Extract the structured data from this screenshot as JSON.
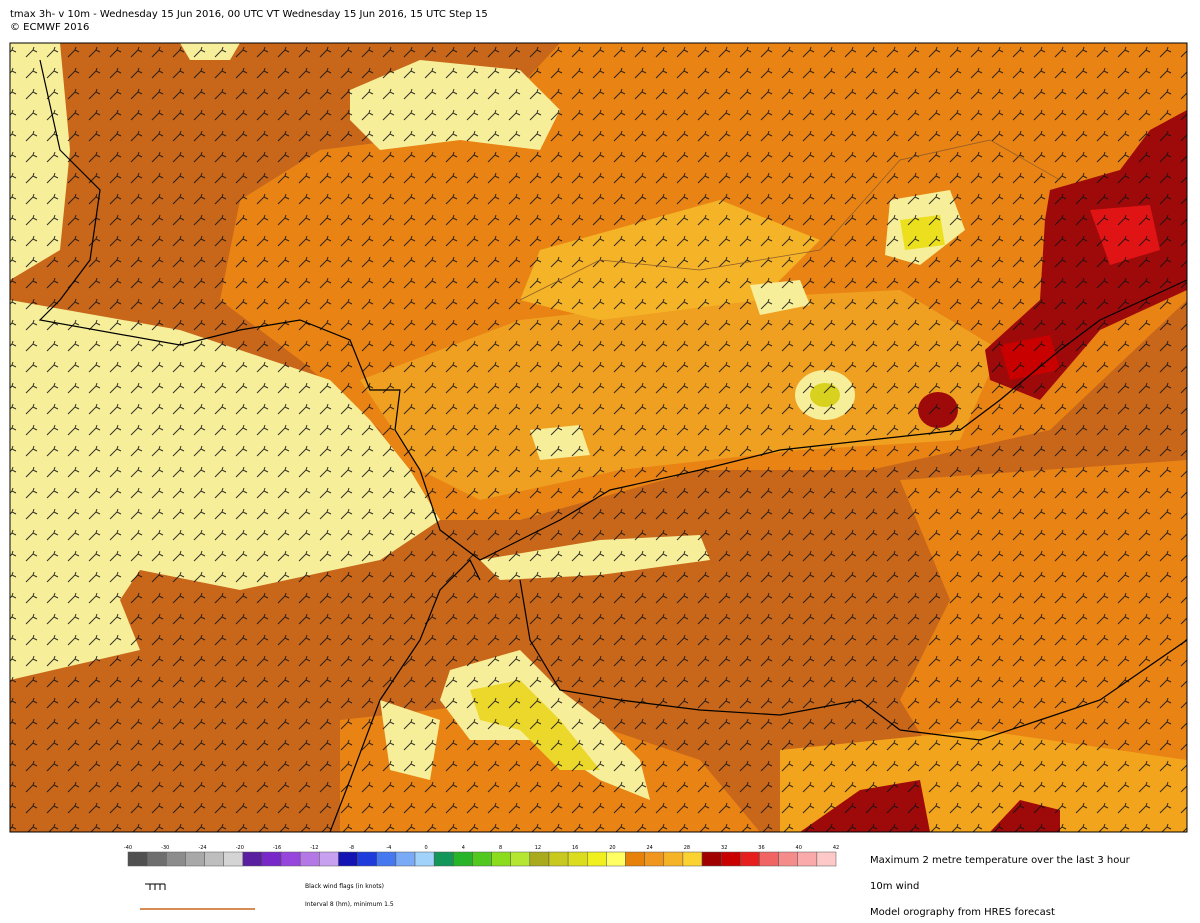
{
  "header": {
    "title": "tmax 3h- v 10m - Wednesday 15 Jun 2016, 00 UTC VT Wednesday 15 Jun 2016, 15 UTC Step 15",
    "copyright": "© ECMWF 2016"
  },
  "colorbar": {
    "colors": [
      "#505050",
      "#6e6e6e",
      "#8c8c8c",
      "#a8a8a8",
      "#bebebe",
      "#d4d4d4",
      "#5a1ea0",
      "#7828c8",
      "#9646dc",
      "#b478e6",
      "#c8a0f0",
      "#1414b4",
      "#1e3cdc",
      "#4678f0",
      "#78aaf5",
      "#a0d2fa",
      "#14965a",
      "#28b428",
      "#50c81e",
      "#8cdc1e",
      "#b4e632",
      "#aaaa1e",
      "#c8c81e",
      "#dcdc1e",
      "#f0f01e",
      "#ffff64",
      "#e6820a",
      "#f0961e",
      "#f5b428",
      "#fad232",
      "#a00000",
      "#c80000",
      "#e61e1e",
      "#f06464",
      "#f58c8c",
      "#faaaaa",
      "#fcc8c8"
    ],
    "ticks": [
      -40,
      -30,
      -24,
      -20,
      -16,
      -12,
      -8,
      -4,
      0,
      4,
      8,
      12,
      16,
      20,
      24,
      28,
      32,
      36,
      40,
      42
    ]
  },
  "legend": {
    "wind_flags": "Black wind flags (in knots)",
    "orography_interval": "Interval 8 (hm), minimum 1.5",
    "field": "Maximum 2 metre temperature over the last 3 hour",
    "wind": "10m wind",
    "orography": "Model orography  from HRES forecast"
  }
}
